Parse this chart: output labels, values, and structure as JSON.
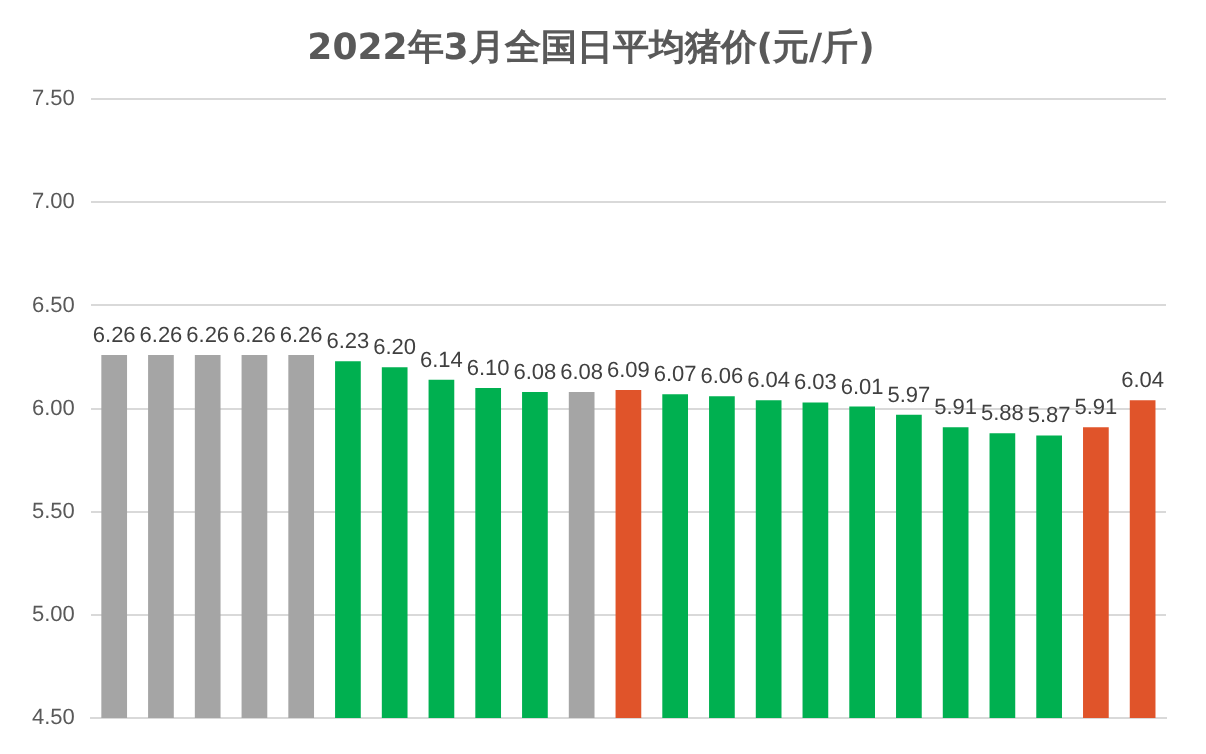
{
  "chart_data": {
    "type": "bar",
    "title": "2022年3月全国日平均猪价(元/斤)",
    "categories": [
      null,
      null,
      null,
      null,
      null,
      null,
      null,
      null,
      null,
      null,
      null,
      null,
      null,
      null,
      null,
      null,
      null,
      null,
      null,
      null,
      null,
      null,
      null
    ],
    "values": [
      6.26,
      6.26,
      6.26,
      6.26,
      6.26,
      6.23,
      6.2,
      6.14,
      6.1,
      6.08,
      6.08,
      6.09,
      6.07,
      6.06,
      6.04,
      6.03,
      6.01,
      5.97,
      5.91,
      5.88,
      5.87,
      5.91,
      6.04
    ],
    "value_labels": [
      "6.26",
      "6.26",
      "6.26",
      "6.26",
      "6.26",
      "6.23",
      "6.20",
      "6.14",
      "6.10",
      "6.08",
      "6.08",
      "6.09",
      "6.07",
      "6.06",
      "6.04",
      "6.03",
      "6.01",
      "5.97",
      "5.91",
      "5.88",
      "5.87",
      "5.91",
      "6.04"
    ],
    "colors": [
      "#a5a5a5",
      "#a5a5a5",
      "#a5a5a5",
      "#a5a5a5",
      "#a5a5a5",
      "#00b050",
      "#00b050",
      "#00b050",
      "#00b050",
      "#00b050",
      "#a5a5a5",
      "#e0542a",
      "#00b050",
      "#00b050",
      "#00b050",
      "#00b050",
      "#00b050",
      "#00b050",
      "#00b050",
      "#00b050",
      "#00b050",
      "#e0542a",
      "#e0542a"
    ],
    "ylim": [
      4.5,
      7.5
    ],
    "yticks": [
      {
        "value": 4.5,
        "label": "4.50"
      },
      {
        "value": 5,
        "label": "5.00"
      },
      {
        "value": 5.5,
        "label": "5.50"
      },
      {
        "value": 6,
        "label": "6.00"
      },
      {
        "value": 6.5,
        "label": "6.50"
      },
      {
        "value": 7,
        "label": "7.00"
      },
      {
        "value": 7.5,
        "label": "7.50"
      }
    ],
    "grid": "y",
    "legend": false
  }
}
